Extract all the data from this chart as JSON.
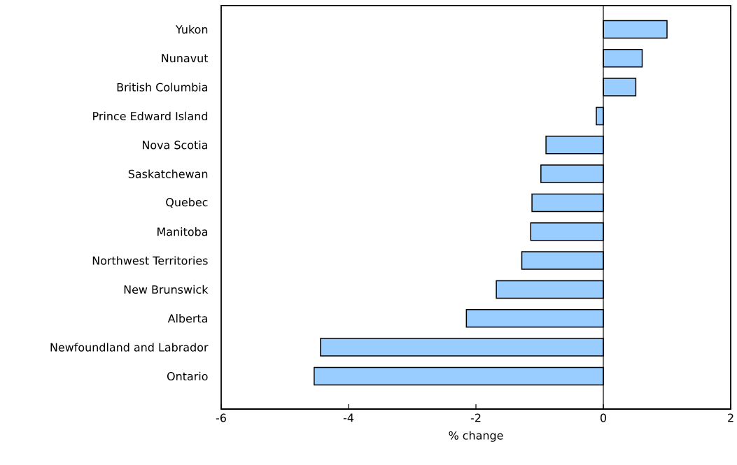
{
  "chart_data": {
    "type": "bar",
    "orientation": "horizontal",
    "xlabel": "% change",
    "categories": [
      "Yukon",
      "Nunavut",
      "British Columbia",
      "Prince Edward Island",
      "Nova Scotia",
      "Saskatchewan",
      "Quebec",
      "Manitoba",
      "Northwest Territories",
      "New Brunswick",
      "Alberta",
      "Newfoundland and Labrador",
      "Ontario"
    ],
    "values": [
      1.0,
      0.61,
      0.51,
      -0.11,
      -0.9,
      -0.98,
      -1.12,
      -1.14,
      -1.28,
      -1.68,
      -2.15,
      -4.44,
      -4.54
    ],
    "color": "#99ccff",
    "xlim": [
      -6,
      2
    ],
    "xticks": [
      -6,
      -4,
      -2,
      0,
      2
    ],
    "grid": false,
    "ref_lines": [
      {
        "axis": "x",
        "value": 0
      }
    ]
  }
}
